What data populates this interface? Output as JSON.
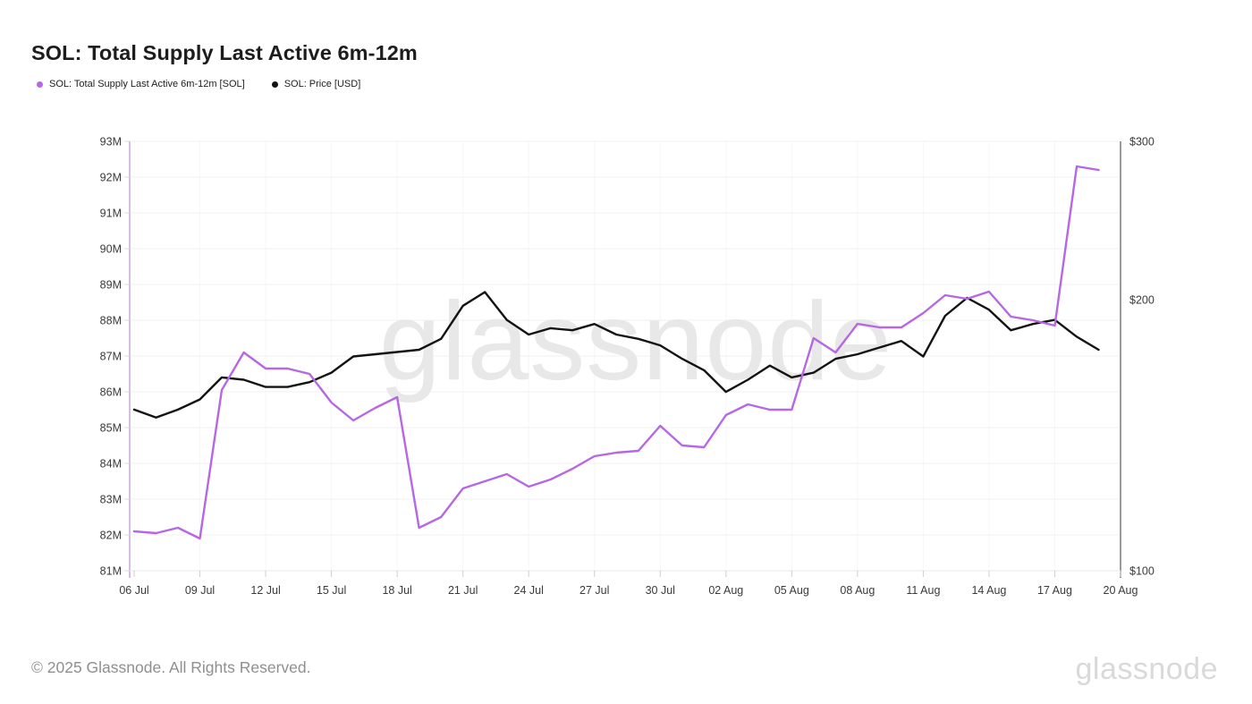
{
  "title": "SOL: Total Supply Last Active 6m-12m",
  "legend": {
    "supply": "SOL: Total Supply Last Active 6m-12m [SOL]",
    "price": "SOL: Price [USD]"
  },
  "footer": {
    "copyright": "© 2025 Glassnode. All Rights Reserved.",
    "wordmark": "glassnode"
  },
  "colors": {
    "supply_line": "#b667e3",
    "price_line": "#131313",
    "grid": "#f0f0f0",
    "grid_vertical": "#f7f7f7",
    "axis_left": "#c9a6e0",
    "axis_right": "#787878",
    "axis_bottom": "#e8e8e8",
    "tick_mark": "#cfcfcf",
    "tick_text": "#3a3a3a",
    "watermark": "#e8e8e8",
    "background": "#ffffff"
  },
  "chart_data": {
    "type": "line",
    "title": "SOL: Total Supply Last Active 6m-12m",
    "watermark": "glassnode",
    "grid": true,
    "legend_position": "top-left",
    "x_dates": [
      "06 Jul",
      "07 Jul",
      "08 Jul",
      "09 Jul",
      "10 Jul",
      "11 Jul",
      "12 Jul",
      "13 Jul",
      "14 Jul",
      "15 Jul",
      "16 Jul",
      "17 Jul",
      "18 Jul",
      "19 Jul",
      "20 Jul",
      "21 Jul",
      "22 Jul",
      "23 Jul",
      "24 Jul",
      "25 Jul",
      "26 Jul",
      "27 Jul",
      "28 Jul",
      "29 Jul",
      "30 Jul",
      "31 Jul",
      "01 Aug",
      "02 Aug",
      "03 Aug",
      "04 Aug",
      "05 Aug",
      "06 Aug",
      "07 Aug",
      "08 Aug",
      "09 Aug",
      "10 Aug",
      "11 Aug",
      "12 Aug",
      "13 Aug",
      "14 Aug",
      "15 Aug",
      "16 Aug",
      "17 Aug",
      "18 Aug",
      "19 Aug"
    ],
    "x_ticks": [
      {
        "label": "06 Jul",
        "day": 0
      },
      {
        "label": "09 Jul",
        "day": 3
      },
      {
        "label": "12 Jul",
        "day": 6
      },
      {
        "label": "15 Jul",
        "day": 9
      },
      {
        "label": "18 Jul",
        "day": 12
      },
      {
        "label": "21 Jul",
        "day": 15
      },
      {
        "label": "24 Jul",
        "day": 18
      },
      {
        "label": "27 Jul",
        "day": 21
      },
      {
        "label": "30 Jul",
        "day": 24
      },
      {
        "label": "02 Aug",
        "day": 27
      },
      {
        "label": "05 Aug",
        "day": 30
      },
      {
        "label": "08 Aug",
        "day": 33
      },
      {
        "label": "11 Aug",
        "day": 36
      },
      {
        "label": "14 Aug",
        "day": 39
      },
      {
        "label": "17 Aug",
        "day": 42
      },
      {
        "label": "20 Aug",
        "day": 45
      }
    ],
    "y_left": {
      "min": 81,
      "max": 93,
      "scale": "linear",
      "ticks": [
        {
          "label": "93M",
          "value": 93
        },
        {
          "label": "92M",
          "value": 92
        },
        {
          "label": "91M",
          "value": 91
        },
        {
          "label": "90M",
          "value": 90
        },
        {
          "label": "89M",
          "value": 89
        },
        {
          "label": "88M",
          "value": 88
        },
        {
          "label": "87M",
          "value": 87
        },
        {
          "label": "86M",
          "value": 86
        },
        {
          "label": "85M",
          "value": 85
        },
        {
          "label": "84M",
          "value": 84
        },
        {
          "label": "83M",
          "value": 83
        },
        {
          "label": "82M",
          "value": 82
        },
        {
          "label": "81M",
          "value": 81
        }
      ]
    },
    "y_right": {
      "min": 100,
      "max": 300,
      "scale": "log",
      "ticks": [
        {
          "label": "$300",
          "value": 300
        },
        {
          "label": "$200",
          "value": 200
        },
        {
          "label": "$100",
          "value": 100
        }
      ]
    },
    "series": [
      {
        "name": "SOL: Total Supply Last Active 6m-12m [SOL]",
        "axis": "left",
        "color": "#b667e3",
        "unit_suffix": "M",
        "values": [
          82.1,
          82.05,
          82.2,
          81.9,
          86.05,
          87.1,
          86.65,
          86.65,
          86.5,
          85.7,
          85.2,
          85.55,
          85.85,
          82.2,
          82.5,
          83.3,
          83.5,
          83.7,
          83.35,
          83.55,
          83.85,
          84.2,
          84.3,
          84.35,
          85.05,
          84.5,
          84.45,
          85.35,
          85.65,
          85.5,
          85.5,
          87.5,
          87.1,
          87.9,
          87.8,
          87.8,
          88.2,
          88.7,
          88.6,
          88.8,
          88.1,
          88.0,
          87.85,
          92.3,
          92.2
        ]
      },
      {
        "name": "SOL: Price [USD]",
        "axis": "right",
        "color": "#131313",
        "unit_prefix": "$",
        "values": [
          151,
          148,
          151,
          155,
          164,
          163,
          160,
          160,
          162,
          166,
          173,
          174,
          175,
          176,
          181,
          197,
          204,
          190,
          183,
          186,
          185,
          188,
          183,
          181,
          178,
          172,
          167,
          158,
          163,
          169,
          164,
          166,
          172,
          174,
          177,
          180,
          173,
          192,
          201,
          195,
          185,
          188,
          190,
          182,
          176
        ]
      }
    ]
  }
}
